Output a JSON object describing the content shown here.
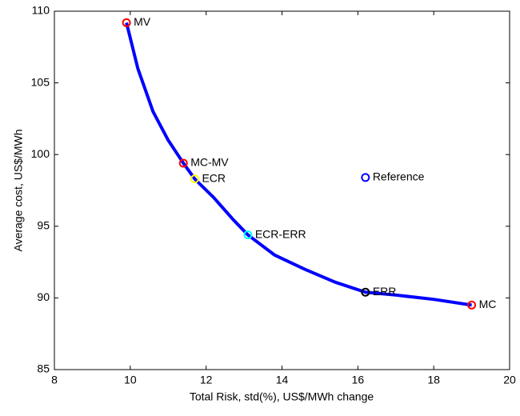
{
  "chart_data": {
    "type": "line",
    "xlabel": "Total Risk, std(%), US$/MWh change",
    "ylabel": "Average cost, US$/MWh",
    "xlim": [
      8,
      20
    ],
    "xticks": [
      8,
      10,
      12,
      14,
      16,
      18,
      20
    ],
    "ylim": [
      85,
      110
    ],
    "yticks": [
      85,
      90,
      95,
      100,
      105,
      110
    ],
    "frontier": {
      "color": "#0000ff",
      "x": [
        9.9,
        10.2,
        10.6,
        11.0,
        11.4,
        11.7,
        12.2,
        12.7,
        13.1,
        13.8,
        14.6,
        15.4,
        16.2,
        17.0,
        18.0,
        19.0
      ],
      "values": [
        109.2,
        106,
        103,
        101,
        99.4,
        98.3,
        97,
        95.5,
        94.4,
        93,
        92,
        91.1,
        90.4,
        90.2,
        89.9,
        89.5
      ]
    },
    "points": [
      {
        "label": "MV",
        "x": 9.9,
        "y": 109.2,
        "color": "#ff0000"
      },
      {
        "label": "MC-MV",
        "x": 11.4,
        "y": 99.4,
        "color": "#ff0000"
      },
      {
        "label": "ECR",
        "x": 11.7,
        "y": 98.3,
        "color": "#ffff00"
      },
      {
        "label": "ECR-ERR",
        "x": 13.1,
        "y": 94.4,
        "color": "#00ffff"
      },
      {
        "label": "ERR",
        "x": 16.2,
        "y": 90.4,
        "color": "#000000"
      },
      {
        "label": "MC",
        "x": 19.0,
        "y": 89.5,
        "color": "#ff0000"
      },
      {
        "label": "Reference",
        "x": 16.2,
        "y": 98.4,
        "color": "#0000ff"
      }
    ]
  }
}
